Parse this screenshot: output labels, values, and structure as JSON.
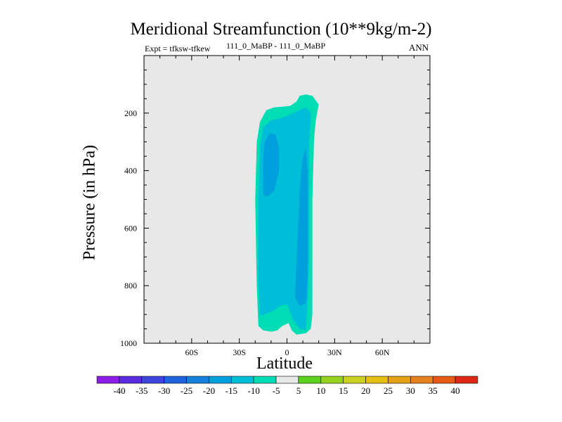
{
  "title": "Meridional Streamfunction (10**9kg/m-2)",
  "subtitle_left": "Expt = tfksw-tfkew",
  "subtitle_center": "111_0_MaBP - 111_0_MaBP",
  "subtitle_right": "ANN",
  "chart_data": {
    "type": "contour",
    "title": "Meridional Streamfunction (10**9kg/m-2)",
    "xlabel": "Latitude",
    "ylabel": "Pressure (in hPa)",
    "xlim": [
      -90,
      90
    ],
    "ylim": [
      1000,
      0
    ],
    "x_ticks": [
      {
        "value": -60,
        "label": "60S"
      },
      {
        "value": -30,
        "label": "30S"
      },
      {
        "value": 0,
        "label": "0"
      },
      {
        "value": 30,
        "label": "30N"
      },
      {
        "value": 60,
        "label": "60N"
      }
    ],
    "y_ticks": [
      {
        "value": 200,
        "label": "200"
      },
      {
        "value": 400,
        "label": "400"
      },
      {
        "value": 600,
        "label": "600"
      },
      {
        "value": 800,
        "label": "800"
      },
      {
        "value": 1000,
        "label": "1000"
      }
    ],
    "background_color": "#e8e8e8",
    "contour_levels": [
      {
        "range": "-10 to -5",
        "color": "#00dcb4",
        "polygon": [
          [
            -18,
            940
          ],
          [
            -19,
            800
          ],
          [
            -20,
            500
          ],
          [
            -19,
            300
          ],
          [
            -17,
            230
          ],
          [
            -13,
            190
          ],
          [
            -8,
            180
          ],
          [
            -3,
            178
          ],
          [
            2,
            175
          ],
          [
            6,
            160
          ],
          [
            8,
            140
          ],
          [
            12,
            135
          ],
          [
            16,
            140
          ],
          [
            20,
            170
          ],
          [
            18,
            230
          ],
          [
            17,
            300
          ],
          [
            16,
            500
          ],
          [
            16,
            700
          ],
          [
            16,
            900
          ],
          [
            15,
            950
          ],
          [
            12,
            965
          ],
          [
            6,
            970
          ],
          [
            3,
            955
          ],
          [
            1,
            930
          ],
          [
            -3,
            940
          ],
          [
            -6,
            955
          ],
          [
            -10,
            960
          ],
          [
            -15,
            955
          ]
        ]
      },
      {
        "range": "-15 to -10",
        "color": "#00bed7",
        "polygon": [
          [
            -17,
            905
          ],
          [
            -18,
            780
          ],
          [
            -18,
            500
          ],
          [
            -17,
            320
          ],
          [
            -15,
            250
          ],
          [
            -10,
            225
          ],
          [
            -4,
            218
          ],
          [
            0,
            210
          ],
          [
            4,
            200
          ],
          [
            8,
            190
          ],
          [
            12,
            180
          ],
          [
            15,
            200
          ],
          [
            14,
            300
          ],
          [
            14,
            500
          ],
          [
            14,
            700
          ],
          [
            13,
            850
          ],
          [
            12,
            955
          ],
          [
            8,
            950
          ],
          [
            4,
            920
          ],
          [
            0,
            865
          ],
          [
            -4,
            870
          ],
          [
            -8,
            885
          ],
          [
            -12,
            895
          ]
        ]
      },
      {
        "range": "-20 to -15",
        "color": "#00a0dc",
        "polygon": [
          [
            -15,
            450
          ],
          [
            -15,
            360
          ],
          [
            -14,
            300
          ],
          [
            -11,
            270
          ],
          [
            -7,
            275
          ],
          [
            -5,
            320
          ],
          [
            -5,
            400
          ],
          [
            -8,
            470
          ],
          [
            -12,
            490
          ],
          [
            -15,
            485
          ]
        ]
      },
      {
        "range": "-20 to -15",
        "color": "#00a0dc",
        "polygon": [
          [
            5,
            840
          ],
          [
            6,
            720
          ],
          [
            7,
            600
          ],
          [
            8,
            470
          ],
          [
            9,
            400
          ],
          [
            10,
            355
          ],
          [
            12,
            320
          ],
          [
            13,
            400
          ],
          [
            13,
            600
          ],
          [
            13,
            760
          ],
          [
            12,
            860
          ],
          [
            8,
            870
          ]
        ]
      },
      {
        "range": "-15 to -10",
        "color": "#00bed7",
        "polygon": [
          [
            3,
            260
          ],
          [
            5,
            250
          ],
          [
            7,
            265
          ],
          [
            6,
            300
          ],
          [
            4,
            290
          ]
        ]
      }
    ]
  },
  "colorbar": {
    "labels": [
      "-40",
      "-35",
      "-30",
      "-25",
      "-20",
      "-15",
      "-10",
      "-5",
      "5",
      "10",
      "15",
      "20",
      "25",
      "30",
      "35",
      "40"
    ],
    "colors": [
      "#8c1ee6",
      "#5a2ddc",
      "#3c46dc",
      "#1e64dc",
      "#1482dc",
      "#00a0dc",
      "#00bed7",
      "#00dcb4",
      "#e8e8e8",
      "#5ad21e",
      "#96d21e",
      "#c8d21e",
      "#e6be14",
      "#e6a014",
      "#e6821e",
      "#e65a14",
      "#dc2814"
    ]
  }
}
